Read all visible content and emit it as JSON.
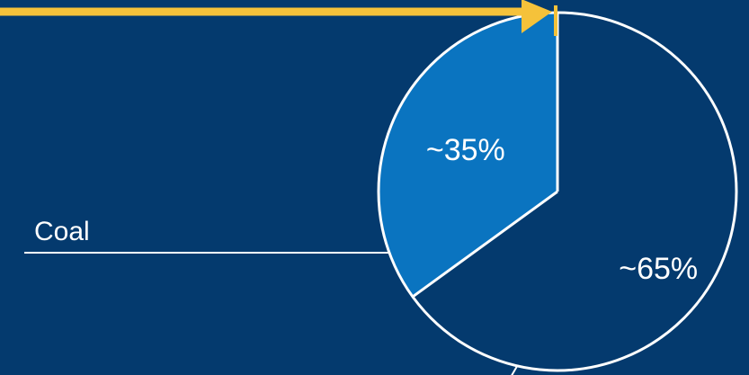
{
  "colors": {
    "background": "#043a6e",
    "outline": "#ffffff",
    "arrow": "#f5c23a"
  },
  "chart_data": {
    "type": "pie",
    "title": "",
    "slices": [
      {
        "label": "~35%",
        "value": 35,
        "color": "#0a74c0"
      },
      {
        "label": "~65%",
        "value": 65,
        "color": "#043a6e"
      }
    ],
    "callouts": [
      {
        "text": "Coal",
        "slice": 0
      }
    ],
    "annotations": [
      {
        "type": "arrow",
        "points_to": "top-of-pie"
      }
    ]
  }
}
